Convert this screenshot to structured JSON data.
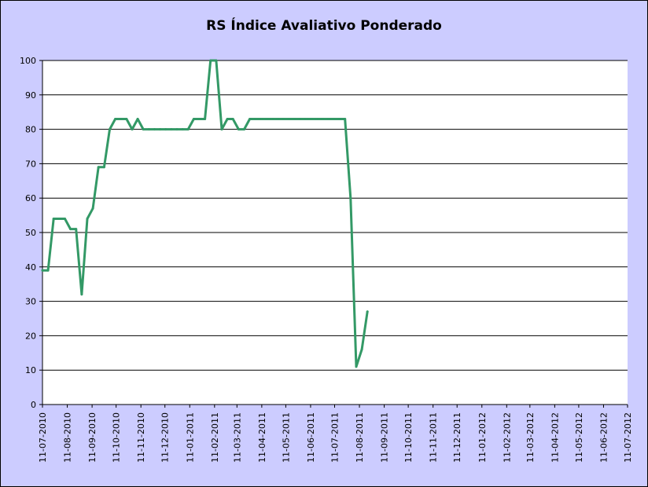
{
  "chart_data": {
    "type": "line",
    "title": "RS Índice Avaliativo Ponderado",
    "xlabel": "",
    "ylabel": "",
    "ylim": [
      0,
      100
    ],
    "yticks": [
      0,
      10,
      20,
      30,
      40,
      50,
      60,
      70,
      80,
      90,
      100
    ],
    "xlim": [
      "2010-07-11",
      "2012-07-11"
    ],
    "xticks": [
      "11-07-2010",
      "11-08-2010",
      "11-09-2010",
      "11-10-2010",
      "11-11-2010",
      "11-12-2010",
      "11-01-2011",
      "11-02-2011",
      "11-03-2011",
      "11-04-2011",
      "11-05-2011",
      "11-06-2011",
      "11-07-2011",
      "11-08-2011",
      "11-09-2011",
      "11-10-2011",
      "11-11-2011",
      "11-12-2011",
      "11-01-2012",
      "11-02-2012",
      "11-03-2012",
      "11-04-2012",
      "11-05-2012",
      "11-06-2012",
      "11-07-2012"
    ],
    "grid": "horizontal",
    "legend": "none",
    "colors": {
      "line": "#339966",
      "plot_background": "#ffffff",
      "chart_background": "#ccccff",
      "grid": "#000000"
    },
    "series": [
      {
        "points": [
          {
            "x": "2010-07-11",
            "y": 39
          },
          {
            "x": "2010-07-18",
            "y": 39
          },
          {
            "x": "2010-07-25",
            "y": 54
          },
          {
            "x": "2010-08-01",
            "y": 54
          },
          {
            "x": "2010-08-08",
            "y": 54
          },
          {
            "x": "2010-08-15",
            "y": 51
          },
          {
            "x": "2010-08-22",
            "y": 51
          },
          {
            "x": "2010-08-29",
            "y": 32
          },
          {
            "x": "2010-09-05",
            "y": 54
          },
          {
            "x": "2010-09-12",
            "y": 57
          },
          {
            "x": "2010-09-19",
            "y": 69
          },
          {
            "x": "2010-09-26",
            "y": 69
          },
          {
            "x": "2010-10-03",
            "y": 80
          },
          {
            "x": "2010-10-10",
            "y": 83
          },
          {
            "x": "2010-10-17",
            "y": 83
          },
          {
            "x": "2010-10-24",
            "y": 83
          },
          {
            "x": "2010-10-31",
            "y": 80
          },
          {
            "x": "2010-11-07",
            "y": 83
          },
          {
            "x": "2010-11-14",
            "y": 80
          },
          {
            "x": "2010-11-21",
            "y": 80
          },
          {
            "x": "2010-11-28",
            "y": 80
          },
          {
            "x": "2010-12-05",
            "y": 80
          },
          {
            "x": "2010-12-12",
            "y": 80
          },
          {
            "x": "2010-12-19",
            "y": 80
          },
          {
            "x": "2010-12-26",
            "y": 80
          },
          {
            "x": "2011-01-02",
            "y": 80
          },
          {
            "x": "2011-01-09",
            "y": 80
          },
          {
            "x": "2011-01-16",
            "y": 83
          },
          {
            "x": "2011-01-23",
            "y": 83
          },
          {
            "x": "2011-01-30",
            "y": 83
          },
          {
            "x": "2011-02-06",
            "y": 100
          },
          {
            "x": "2011-02-13",
            "y": 100
          },
          {
            "x": "2011-02-20",
            "y": 80
          },
          {
            "x": "2011-02-27",
            "y": 83
          },
          {
            "x": "2011-03-06",
            "y": 83
          },
          {
            "x": "2011-03-13",
            "y": 80
          },
          {
            "x": "2011-03-20",
            "y": 80
          },
          {
            "x": "2011-03-27",
            "y": 83
          },
          {
            "x": "2011-04-03",
            "y": 83
          },
          {
            "x": "2011-04-10",
            "y": 83
          },
          {
            "x": "2011-04-17",
            "y": 83
          },
          {
            "x": "2011-04-24",
            "y": 83
          },
          {
            "x": "2011-05-01",
            "y": 83
          },
          {
            "x": "2011-05-08",
            "y": 83
          },
          {
            "x": "2011-05-15",
            "y": 83
          },
          {
            "x": "2011-05-22",
            "y": 83
          },
          {
            "x": "2011-05-29",
            "y": 83
          },
          {
            "x": "2011-06-05",
            "y": 83
          },
          {
            "x": "2011-06-12",
            "y": 83
          },
          {
            "x": "2011-06-19",
            "y": 83
          },
          {
            "x": "2011-06-26",
            "y": 83
          },
          {
            "x": "2011-07-03",
            "y": 83
          },
          {
            "x": "2011-07-10",
            "y": 83
          },
          {
            "x": "2011-07-17",
            "y": 83
          },
          {
            "x": "2011-07-24",
            "y": 83
          },
          {
            "x": "2011-07-31",
            "y": 60
          },
          {
            "x": "2011-08-07",
            "y": 11
          },
          {
            "x": "2011-08-14",
            "y": 16
          },
          {
            "x": "2011-08-21",
            "y": 27
          }
        ]
      }
    ]
  }
}
